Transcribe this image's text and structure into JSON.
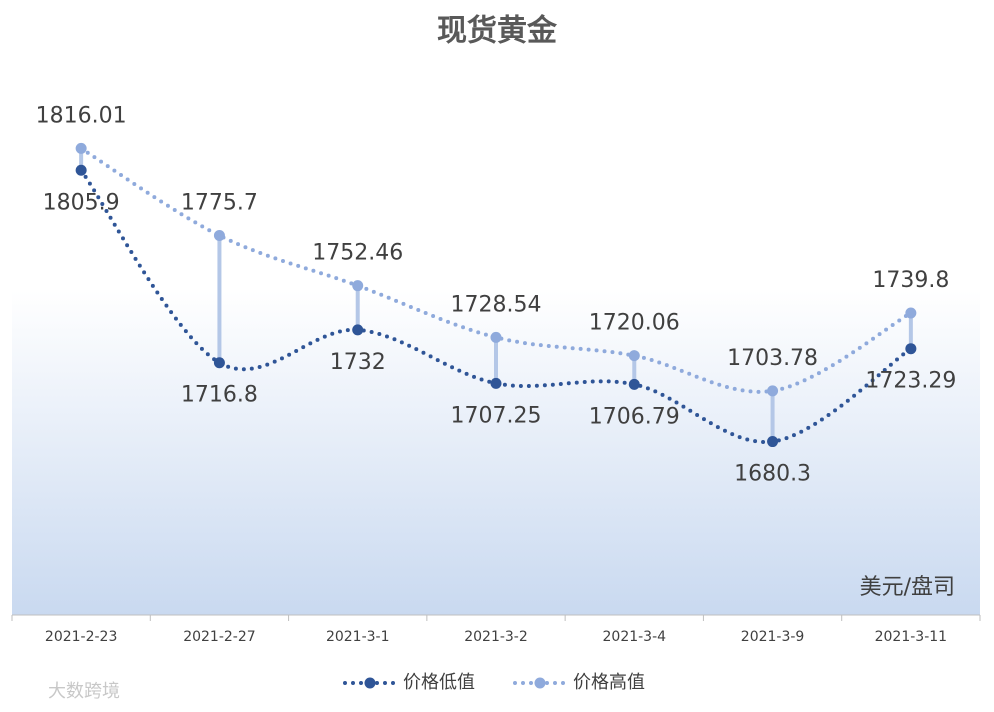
{
  "chart_data": {
    "type": "line",
    "title": "现货黄金",
    "unit_label": "美元/盘司",
    "watermark": "大数跨境",
    "categories": [
      "2021-2-23",
      "2021-2-27",
      "2021-3-1",
      "2021-3-2",
      "2021-3-4",
      "2021-3-9",
      "2021-3-11"
    ],
    "series": [
      {
        "name": "价格低值",
        "color": "#2f5597",
        "values": [
          1805.9,
          1716.8,
          1732,
          1707.25,
          1706.79,
          1680.3,
          1723.29
        ]
      },
      {
        "name": "价格高值",
        "color": "#8faadc",
        "values": [
          1816.01,
          1775.7,
          1752.46,
          1728.54,
          1720.06,
          1703.78,
          1739.8
        ]
      }
    ],
    "ylim": [
      1600,
      1850
    ],
    "high_low_lines": true,
    "high_low_color": "#b4c7e7",
    "legend": "bottom"
  }
}
